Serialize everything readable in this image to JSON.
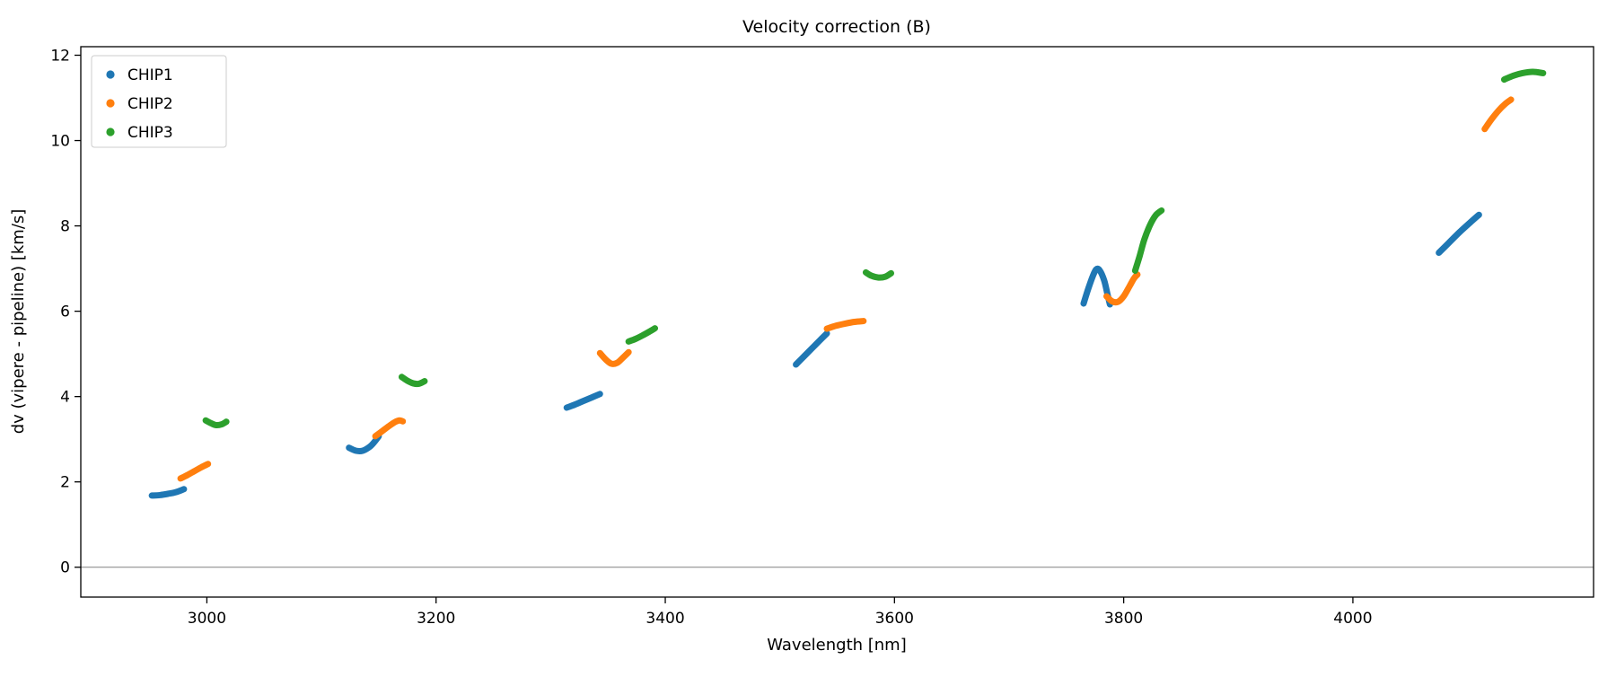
{
  "figure": {
    "title": "Velocity correction (B)"
  },
  "chart_data": {
    "type": "scatter",
    "title": "Velocity correction (B)",
    "xlabel": "Wavelength [nm]",
    "ylabel": "dv (vipere - pipeline) [km/s]",
    "xlim": [
      2890,
      4210
    ],
    "ylim": [
      -0.7,
      12.2
    ],
    "xticks": [
      3000,
      3200,
      3400,
      3600,
      3800,
      4000
    ],
    "yticks": [
      0,
      2,
      4,
      6,
      8,
      10,
      12
    ],
    "grid": false,
    "legend_position": "upper-left",
    "zero_line": {
      "y": 0,
      "color": "#808080"
    },
    "series": [
      {
        "name": "CHIP1",
        "color": "#1f77b4",
        "segments": [
          [
            [
              2952,
              1.68
            ],
            [
              2959,
              1.69
            ],
            [
              2966,
              1.72
            ],
            [
              2973,
              1.76
            ],
            [
              2980,
              1.83
            ]
          ],
          [
            [
              3124,
              2.8
            ],
            [
              3130,
              2.73
            ],
            [
              3136,
              2.73
            ],
            [
              3142,
              2.82
            ],
            [
              3146,
              2.93
            ],
            [
              3150,
              3.07
            ]
          ],
          [
            [
              3314,
              3.74
            ],
            [
              3321,
              3.81
            ],
            [
              3328,
              3.89
            ],
            [
              3336,
              3.98
            ],
            [
              3343,
              4.06
            ]
          ],
          [
            [
              3514,
              4.75
            ],
            [
              3521,
              4.94
            ],
            [
              3528,
              5.13
            ],
            [
              3535,
              5.32
            ],
            [
              3541,
              5.48
            ]
          ],
          [
            [
              3765,
              6.18
            ],
            [
              3769,
              6.52
            ],
            [
              3773,
              6.82
            ],
            [
              3776,
              6.98
            ],
            [
              3779,
              6.96
            ],
            [
              3783,
              6.72
            ],
            [
              3786,
              6.38
            ],
            [
              3788,
              6.16
            ]
          ],
          [
            [
              4075,
              7.37
            ],
            [
              4084,
              7.61
            ],
            [
              4093,
              7.85
            ],
            [
              4102,
              8.07
            ],
            [
              4110,
              8.26
            ]
          ]
        ]
      },
      {
        "name": "CHIP2",
        "color": "#ff7f0e",
        "segments": [
          [
            [
              2977,
              2.08
            ],
            [
              2983,
              2.16
            ],
            [
              2989,
              2.25
            ],
            [
              2995,
              2.34
            ],
            [
              3001,
              2.42
            ]
          ],
          [
            [
              3147,
              3.07
            ],
            [
              3153,
              3.19
            ],
            [
              3159,
              3.31
            ],
            [
              3164,
              3.4
            ],
            [
              3168,
              3.44
            ],
            [
              3171,
              3.42
            ]
          ],
          [
            [
              3343,
              5.02
            ],
            [
              3348,
              4.87
            ],
            [
              3353,
              4.77
            ],
            [
              3358,
              4.79
            ],
            [
              3363,
              4.91
            ],
            [
              3368,
              5.04
            ]
          ],
          [
            [
              3541,
              5.59
            ],
            [
              3549,
              5.66
            ],
            [
              3557,
              5.71
            ],
            [
              3565,
              5.75
            ],
            [
              3573,
              5.77
            ]
          ],
          [
            [
              3785,
              6.35
            ],
            [
              3790,
              6.23
            ],
            [
              3795,
              6.22
            ],
            [
              3800,
              6.35
            ],
            [
              3805,
              6.58
            ],
            [
              3809,
              6.77
            ],
            [
              3812,
              6.86
            ]
          ],
          [
            [
              4115,
              10.27
            ],
            [
              4121,
              10.5
            ],
            [
              4127,
              10.7
            ],
            [
              4133,
              10.86
            ],
            [
              4138,
              10.96
            ]
          ]
        ]
      },
      {
        "name": "CHIP3",
        "color": "#2ca02c",
        "segments": [
          [
            [
              2999,
              3.44
            ],
            [
              3004,
              3.37
            ],
            [
              3008,
              3.33
            ],
            [
              3013,
              3.35
            ],
            [
              3017,
              3.41
            ]
          ],
          [
            [
              3170,
              4.46
            ],
            [
              3175,
              4.37
            ],
            [
              3180,
              4.31
            ],
            [
              3185,
              4.3
            ],
            [
              3190,
              4.36
            ]
          ],
          [
            [
              3368,
              5.29
            ],
            [
              3374,
              5.35
            ],
            [
              3380,
              5.43
            ],
            [
              3386,
              5.52
            ],
            [
              3391,
              5.6
            ]
          ],
          [
            [
              3575,
              6.91
            ],
            [
              3580,
              6.83
            ],
            [
              3586,
              6.79
            ],
            [
              3592,
              6.81
            ],
            [
              3597,
              6.89
            ]
          ],
          [
            [
              3810,
              6.95
            ],
            [
              3814,
              7.3
            ],
            [
              3818,
              7.68
            ],
            [
              3823,
              8.02
            ],
            [
              3828,
              8.25
            ],
            [
              3833,
              8.36
            ]
          ],
          [
            [
              4132,
              11.43
            ],
            [
              4140,
              11.52
            ],
            [
              4148,
              11.58
            ],
            [
              4157,
              11.61
            ],
            [
              4166,
              11.58
            ]
          ]
        ]
      }
    ]
  }
}
